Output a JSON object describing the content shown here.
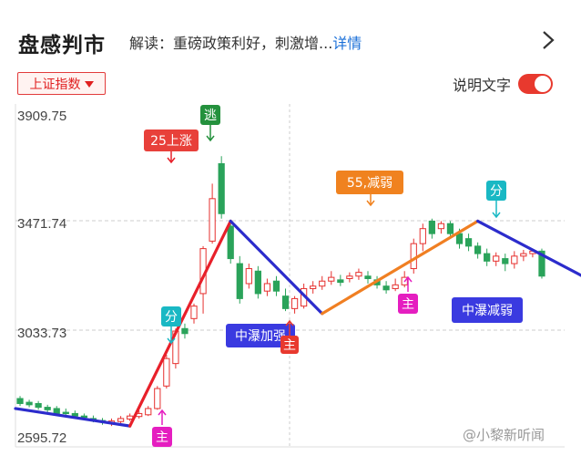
{
  "header": {
    "title": "盘感判市",
    "intro_label": "解读：",
    "intro_text": "重磅政策利好，刺激增...",
    "detail_link": "详情"
  },
  "index_selector": {
    "label": "上证指数"
  },
  "explain_toggle": {
    "label": "说明文字",
    "on": true
  },
  "colors": {
    "up": "#e6302e",
    "down": "#2aa35a",
    "trend_up": "#e8202a",
    "trend_down": "#2c2ccc",
    "trend_mid": "#f07f22",
    "signal_pink": "#e51ec0",
    "signal_cyan": "#19b8c4",
    "signal_green": "#24913d"
  },
  "watermark": "@小黎新听闻",
  "chart_data": {
    "type": "candlestick",
    "y_ticks": [
      "3909.75",
      "3471.74",
      "3033.73",
      "2595.72"
    ],
    "ylim": [
      2595.72,
      3909.75
    ],
    "annotations": [
      {
        "text": "25上涨",
        "kind": "label-red"
      },
      {
        "text": "逃",
        "kind": "signal-green"
      },
      {
        "text": "55,减弱",
        "kind": "label-orange"
      },
      {
        "text": "分",
        "kind": "signal-cyan"
      },
      {
        "text": "分",
        "kind": "signal-cyan"
      },
      {
        "text": "主",
        "kind": "signal-pink"
      },
      {
        "text": "主",
        "kind": "signal-pink"
      },
      {
        "text": "中瀑加强",
        "kind": "label-blue"
      },
      {
        "text": "主",
        "kind": "signal-red"
      },
      {
        "text": "中瀑减弱",
        "kind": "label-blue"
      }
    ],
    "candles": [
      {
        "o": 2760,
        "c": 2740,
        "h": 2770,
        "l": 2730
      },
      {
        "o": 2745,
        "c": 2735,
        "h": 2755,
        "l": 2725
      },
      {
        "o": 2740,
        "c": 2725,
        "h": 2750,
        "l": 2715
      },
      {
        "o": 2725,
        "c": 2715,
        "h": 2735,
        "l": 2705
      },
      {
        "o": 2720,
        "c": 2700,
        "h": 2730,
        "l": 2690
      },
      {
        "o": 2705,
        "c": 2700,
        "h": 2720,
        "l": 2690
      },
      {
        "o": 2700,
        "c": 2690,
        "h": 2712,
        "l": 2680
      },
      {
        "o": 2690,
        "c": 2685,
        "h": 2700,
        "l": 2675
      },
      {
        "o": 2680,
        "c": 2675,
        "h": 2692,
        "l": 2665
      },
      {
        "o": 2672,
        "c": 2665,
        "h": 2682,
        "l": 2655
      },
      {
        "o": 2660,
        "c": 2670,
        "h": 2680,
        "l": 2650
      },
      {
        "o": 2668,
        "c": 2680,
        "h": 2690,
        "l": 2660
      },
      {
        "o": 2678,
        "c": 2690,
        "h": 2700,
        "l": 2670
      },
      {
        "o": 2688,
        "c": 2700,
        "h": 2712,
        "l": 2680
      },
      {
        "o": 2695,
        "c": 2720,
        "h": 2730,
        "l": 2690
      },
      {
        "o": 2720,
        "c": 2800,
        "h": 2810,
        "l": 2715
      },
      {
        "o": 2810,
        "c": 2920,
        "h": 2935,
        "l": 2800
      },
      {
        "o": 2900,
        "c": 3030,
        "h": 3040,
        "l": 2880
      },
      {
        "o": 3040,
        "c": 3020,
        "h": 3060,
        "l": 3000
      },
      {
        "o": 3080,
        "c": 3130,
        "h": 3140,
        "l": 3060
      },
      {
        "o": 3180,
        "c": 3360,
        "h": 3370,
        "l": 3100
      },
      {
        "o": 3390,
        "c": 3560,
        "h": 3620,
        "l": 3380
      },
      {
        "o": 3700,
        "c": 3500,
        "h": 3730,
        "l": 3480
      },
      {
        "o": 3450,
        "c": 3320,
        "h": 3470,
        "l": 3300
      },
      {
        "o": 3300,
        "c": 3160,
        "h": 3330,
        "l": 3140
      },
      {
        "o": 3220,
        "c": 3280,
        "h": 3300,
        "l": 3200
      },
      {
        "o": 3270,
        "c": 3180,
        "h": 3290,
        "l": 3160
      },
      {
        "o": 3190,
        "c": 3220,
        "h": 3240,
        "l": 3170
      },
      {
        "o": 3230,
        "c": 3190,
        "h": 3250,
        "l": 3170
      },
      {
        "o": 3170,
        "c": 3120,
        "h": 3200,
        "l": 3110
      },
      {
        "o": 3120,
        "c": 3160,
        "h": 3170,
        "l": 3100
      },
      {
        "o": 3130,
        "c": 3200,
        "h": 3220,
        "l": 3120
      },
      {
        "o": 3200,
        "c": 3210,
        "h": 3230,
        "l": 3180
      },
      {
        "o": 3210,
        "c": 3230,
        "h": 3250,
        "l": 3195
      },
      {
        "o": 3230,
        "c": 3245,
        "h": 3270,
        "l": 3215
      },
      {
        "o": 3235,
        "c": 3225,
        "h": 3255,
        "l": 3210
      },
      {
        "o": 3240,
        "c": 3250,
        "h": 3265,
        "l": 3225
      },
      {
        "o": 3250,
        "c": 3265,
        "h": 3280,
        "l": 3235
      },
      {
        "o": 3250,
        "c": 3240,
        "h": 3270,
        "l": 3220
      },
      {
        "o": 3235,
        "c": 3215,
        "h": 3250,
        "l": 3200
      },
      {
        "o": 3210,
        "c": 3195,
        "h": 3230,
        "l": 3180
      },
      {
        "o": 3200,
        "c": 3215,
        "h": 3240,
        "l": 3190
      },
      {
        "o": 3215,
        "c": 3245,
        "h": 3270,
        "l": 3205
      },
      {
        "o": 3280,
        "c": 3380,
        "h": 3400,
        "l": 3260
      },
      {
        "o": 3380,
        "c": 3440,
        "h": 3460,
        "l": 3350
      },
      {
        "o": 3470,
        "c": 3420,
        "h": 3480,
        "l": 3400
      },
      {
        "o": 3440,
        "c": 3460,
        "h": 3470,
        "l": 3420
      },
      {
        "o": 3460,
        "c": 3420,
        "h": 3470,
        "l": 3400
      },
      {
        "o": 3420,
        "c": 3380,
        "h": 3440,
        "l": 3360
      },
      {
        "o": 3400,
        "c": 3370,
        "h": 3420,
        "l": 3350
      },
      {
        "o": 3370,
        "c": 3340,
        "h": 3385,
        "l": 3320
      },
      {
        "o": 3340,
        "c": 3310,
        "h": 3360,
        "l": 3290
      },
      {
        "o": 3310,
        "c": 3330,
        "h": 3345,
        "l": 3290
      },
      {
        "o": 3320,
        "c": 3300,
        "h": 3340,
        "l": 3270
      },
      {
        "o": 3300,
        "c": 3330,
        "h": 3350,
        "l": 3280
      },
      {
        "o": 3330,
        "c": 3340,
        "h": 3355,
        "l": 3310
      },
      {
        "o": 3340,
        "c": 3350,
        "h": 3360,
        "l": 3325
      },
      {
        "o": 3350,
        "c": 3250,
        "h": 3360,
        "l": 3240
      }
    ],
    "trend_lines": [
      {
        "color": "trend_down",
        "from": [
          0,
          2720
        ],
        "to": [
          12,
          2650
        ]
      },
      {
        "color": "trend_up",
        "from": [
          12,
          2650
        ],
        "to": [
          23,
          3470
        ]
      },
      {
        "color": "trend_down",
        "from": [
          23,
          3470
        ],
        "to": [
          33,
          3100
        ]
      },
      {
        "color": "trend_mid",
        "from": [
          33,
          3100
        ],
        "to": [
          50,
          3470
        ]
      },
      {
        "color": "trend_down",
        "from": [
          50,
          3470
        ],
        "to": [
          63,
          3220
        ]
      }
    ]
  }
}
